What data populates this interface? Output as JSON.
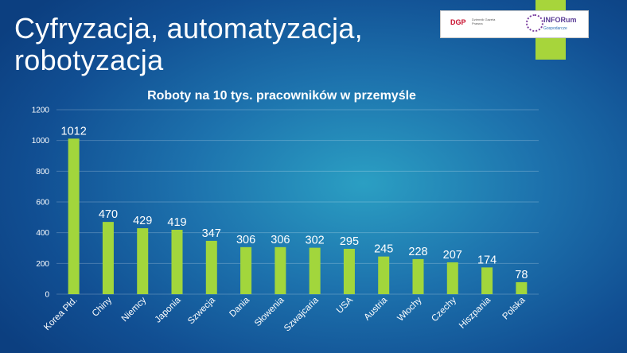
{
  "slide": {
    "title_line1": "Cyfryzacja, automatyzacja,",
    "title_line2": "robotyzacja"
  },
  "logos": {
    "left": "DGP",
    "left_sub": "Dziennik Gazeta Prawna",
    "right": "INFORum",
    "right_sub": "Gospodarcze"
  },
  "colors": {
    "bar": "#a2d63c",
    "accent": "#a7d53b",
    "background": "#1d72ad"
  },
  "chart_data": {
    "type": "bar",
    "title": "Roboty na 10 tys. pracowników w przemyśle",
    "categories": [
      "Korea Płd.",
      "Chiny",
      "Niemcy",
      "Japonia",
      "Szwecja",
      "Dania",
      "Słowenia",
      "Szwajcaria",
      "USA",
      "Austria",
      "Włochy",
      "Czechy",
      "Hiszpania",
      "Polska"
    ],
    "values": [
      1012,
      470,
      429,
      419,
      347,
      306,
      306,
      302,
      295,
      245,
      228,
      207,
      174,
      78
    ],
    "ylim": [
      0,
      1200
    ],
    "yticks": [
      0,
      200,
      400,
      600,
      800,
      1000,
      1200
    ],
    "grid": true,
    "data_labels": true
  }
}
